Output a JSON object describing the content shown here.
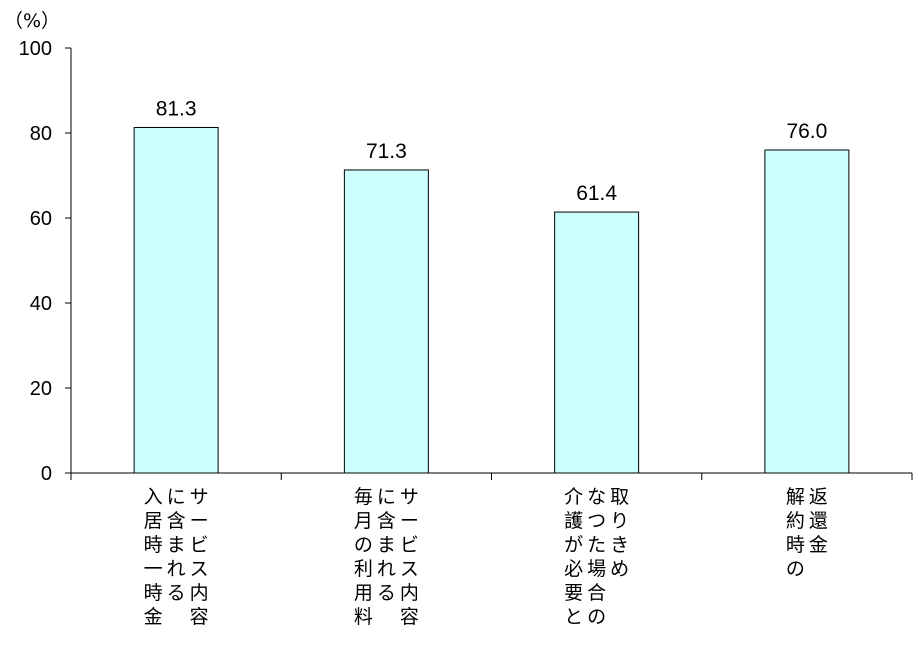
{
  "chart_data": {
    "type": "bar",
    "unit_label": "（%）",
    "categories": [
      [
        "サービス内容",
        "に含まれる",
        "入居時一時金"
      ],
      [
        "サービス内容",
        "に含まれる",
        "毎月の利用料"
      ],
      [
        "取りきめ",
        "なつた場合の",
        "介護が必要と"
      ],
      [
        "返還金",
        "解約時の"
      ]
    ],
    "values": [
      81.3,
      71.3,
      61.4,
      76.0
    ],
    "value_labels": [
      "81.3",
      "71.3",
      "61.4",
      "76.0"
    ],
    "y_ticks": [
      "0",
      "20",
      "40",
      "60",
      "80",
      "100"
    ],
    "ylim": [
      0,
      100
    ],
    "bar_color": "#ccffff",
    "bar_stroke": "#000000",
    "grid": false
  }
}
